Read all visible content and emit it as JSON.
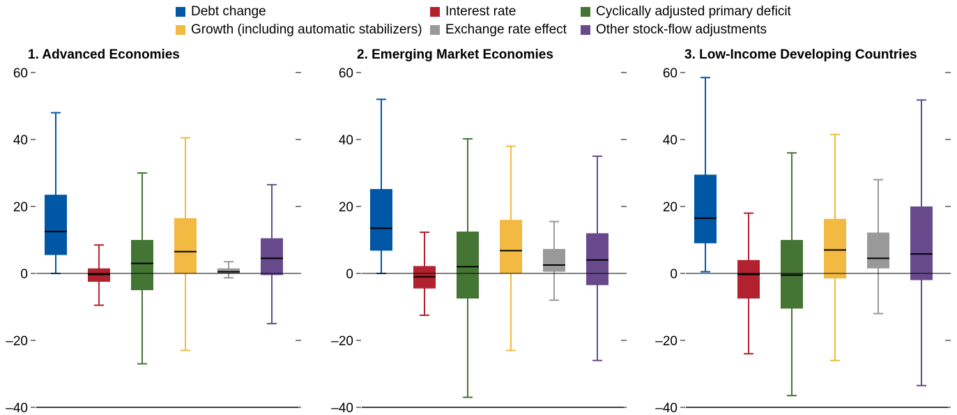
{
  "colors": {
    "debt": "#0057a5",
    "interest": "#b2222e",
    "cyclical": "#457535",
    "growth": "#f2ba42",
    "exchange": "#999999",
    "other": "#684a8c"
  },
  "legend": [
    {
      "label": "Debt change",
      "color": "#0057a5"
    },
    {
      "label": "Interest rate",
      "color": "#b2222e"
    },
    {
      "label": "Cyclically adjusted primary deficit",
      "color": "#457535"
    },
    {
      "label": "Growth (including automatic stabilizers)",
      "color": "#f2ba42"
    },
    {
      "label": "Exchange rate effect",
      "color": "#999999"
    },
    {
      "label": "Other stock-flow adjustments",
      "color": "#684a8c"
    }
  ],
  "chart_data": [
    {
      "type": "box",
      "title": "1. Advanced Economies",
      "ylim": [
        -40,
        60
      ],
      "yticks": [
        60,
        40,
        20,
        0,
        -20,
        -40
      ],
      "ytick_labels": [
        "60",
        "40",
        "20",
        "0",
        "–20",
        "–40"
      ],
      "series": [
        {
          "name": "Debt change",
          "min": 0,
          "q1": 5.5,
          "median": 12.5,
          "q3": 23.5,
          "max": 48
        },
        {
          "name": "Interest rate",
          "min": -9.5,
          "q1": -2.5,
          "median": -0.3,
          "q3": 1.5,
          "max": 8.5
        },
        {
          "name": "Cyclically adjusted primary deficit",
          "min": -27,
          "q1": -5,
          "median": 3,
          "q3": 10,
          "max": 30
        },
        {
          "name": "Growth (including automatic stabilizers)",
          "min": -23,
          "q1": 0,
          "median": 6.5,
          "q3": 16.5,
          "max": 40.5
        },
        {
          "name": "Exchange rate effect",
          "min": -1.3,
          "q1": 0,
          "median": 0.5,
          "q3": 1.5,
          "max": 3.5
        },
        {
          "name": "Other stock-flow adjustments",
          "min": -15,
          "q1": -0.5,
          "median": 4.5,
          "q3": 10.5,
          "max": 26.5
        }
      ]
    },
    {
      "type": "box",
      "title": "2. Emerging Market Economies",
      "ylim": [
        -40,
        60
      ],
      "yticks": [
        60,
        40,
        20,
        0,
        -20,
        -40
      ],
      "ytick_labels": [
        "60",
        "40",
        "20",
        "0",
        "–20",
        "–40"
      ],
      "series": [
        {
          "name": "Debt change",
          "min": 0,
          "q1": 6.8,
          "median": 13.5,
          "q3": 25.2,
          "max": 52
        },
        {
          "name": "Interest rate",
          "min": -12.5,
          "q1": -4.5,
          "median": -1,
          "q3": 2.2,
          "max": 12.3
        },
        {
          "name": "Cyclically adjusted primary deficit",
          "min": -37,
          "q1": -7.5,
          "median": 2,
          "q3": 12.5,
          "max": 40.2
        },
        {
          "name": "Growth (including automatic stabilizers)",
          "min": -23,
          "q1": 0,
          "median": 6.8,
          "q3": 16,
          "max": 38
        },
        {
          "name": "Exchange rate effect",
          "min": -8,
          "q1": 0.5,
          "median": 2.5,
          "q3": 7.3,
          "max": 15.5
        },
        {
          "name": "Other stock-flow adjustments",
          "min": -26,
          "q1": -3.5,
          "median": 4,
          "q3": 12,
          "max": 35
        }
      ]
    },
    {
      "type": "box",
      "title": "3. Low-Income Developing Countries",
      "ylim": [
        -40,
        60
      ],
      "yticks": [
        60,
        40,
        20,
        0,
        -20,
        -40
      ],
      "ytick_labels": [
        "60",
        "40",
        "20",
        "0",
        "–20",
        "–40"
      ],
      "series": [
        {
          "name": "Debt change",
          "min": 0.5,
          "q1": 9,
          "median": 16.5,
          "q3": 29.5,
          "max": 58.5
        },
        {
          "name": "Interest rate",
          "min": -24,
          "q1": -7.5,
          "median": -0.3,
          "q3": 4,
          "max": 18
        },
        {
          "name": "Cyclically adjusted primary deficit",
          "min": -36.5,
          "q1": -10.5,
          "median": -0.5,
          "q3": 10,
          "max": 36
        },
        {
          "name": "Growth (including automatic stabilizers)",
          "min": -26,
          "q1": -1.5,
          "median": 7,
          "q3": 16.3,
          "max": 41.5
        },
        {
          "name": "Exchange rate effect",
          "min": -12,
          "q1": 1.5,
          "median": 4.5,
          "q3": 12.2,
          "max": 28
        },
        {
          "name": "Other stock-flow adjustments",
          "min": -33.5,
          "q1": -2,
          "median": 5.8,
          "q3": 20,
          "max": 51.8
        }
      ]
    }
  ]
}
